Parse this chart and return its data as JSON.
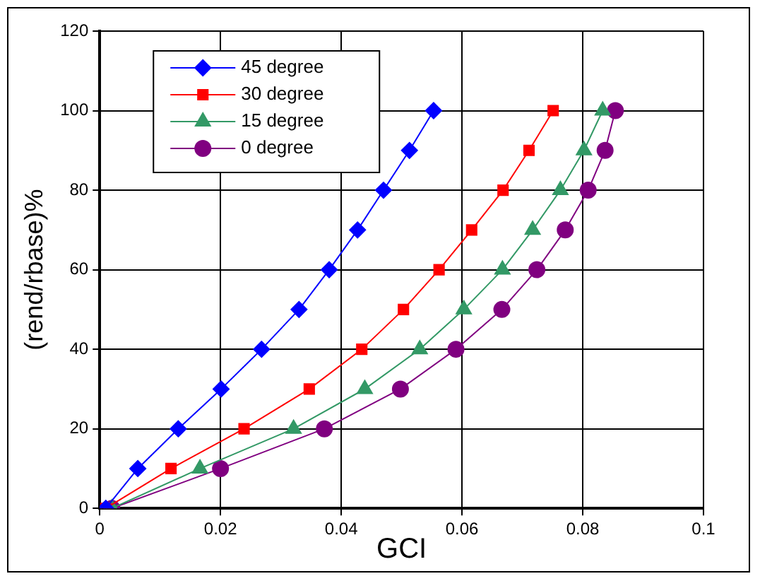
{
  "chart_data": {
    "type": "line",
    "xlabel": "GCI",
    "ylabel": "(rend/rbase)%",
    "xlim": [
      0,
      0.1
    ],
    "xticks": [
      0,
      0.02,
      0.04,
      0.06,
      0.08,
      0.1
    ],
    "ylim": [
      0,
      120
    ],
    "yticks": [
      0,
      20,
      40,
      60,
      80,
      100,
      120
    ],
    "grid": true,
    "legend": "top left",
    "series": [
      {
        "name": "45 degree",
        "color": "#0000ff",
        "marker": "diamond",
        "x": [
          0.001,
          0.0063,
          0.013,
          0.0201,
          0.0268,
          0.033,
          0.038,
          0.0427,
          0.047,
          0.0513,
          0.0553
        ],
        "values": [
          0,
          10,
          20,
          30,
          40,
          50,
          60,
          70,
          80,
          90,
          100
        ]
      },
      {
        "name": "30 degree",
        "color": "#ff0000",
        "marker": "square",
        "x": [
          0.001,
          0.0118,
          0.0239,
          0.0347,
          0.0434,
          0.0503,
          0.0562,
          0.0616,
          0.0668,
          0.0711,
          0.0751
        ],
        "values": [
          0,
          10,
          20,
          30,
          40,
          50,
          60,
          70,
          80,
          90,
          100
        ]
      },
      {
        "name": "15 degree",
        "color": "#339966",
        "marker": "triangle",
        "x": [
          0.002,
          0.0166,
          0.0321,
          0.0439,
          0.053,
          0.0603,
          0.0667,
          0.0717,
          0.0763,
          0.0802,
          0.0833
        ],
        "values": [
          0,
          10,
          20,
          30,
          40,
          50,
          60,
          70,
          80,
          90,
          100
        ]
      },
      {
        "name": "0 degree",
        "color": "#800080",
        "marker": "circle",
        "x": [
          0.002,
          0.02,
          0.0372,
          0.0498,
          0.059,
          0.0666,
          0.0724,
          0.0771,
          0.0809,
          0.0837,
          0.0854
        ],
        "values": [
          0,
          10,
          20,
          30,
          40,
          50,
          60,
          70,
          80,
          90,
          100
        ]
      }
    ]
  }
}
